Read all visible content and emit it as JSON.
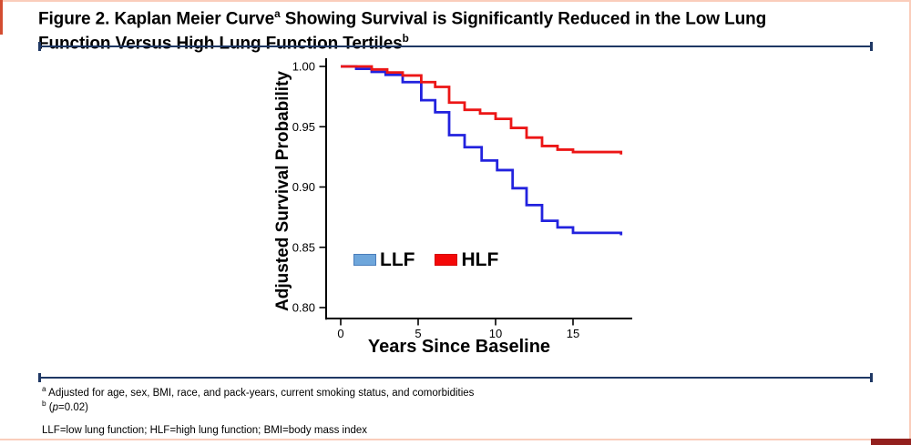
{
  "page": {
    "background": "#ffffff",
    "border_line_color": "#FACDBB",
    "rule_color": "#1F3864",
    "corner_accent_color": "#93201E",
    "corner_sliver_color": "#D34D31"
  },
  "title": {
    "line1_pre": "Figure 2. Kaplan Meier Curve",
    "line1_sup": "a",
    "line1_post": " Showing Survival is Significantly Reduced in the Low Lung",
    "line2": "Function Versus High Lung Function Tertiles",
    "line2_sup": "b"
  },
  "footnotes": {
    "a_sup": "a",
    "a_text": " Adjusted for age, sex, BMI, race, and pack-years, current smoking status, and comorbidities",
    "b_sup": "b",
    "b_open": " (",
    "b_italic": "p",
    "b_rest": "=0.02)",
    "abbrev": "LLF=low lung function; HLF=high lung function; BMI=body mass index"
  },
  "chart_data": {
    "type": "line",
    "subtype": "kaplan-meier-step",
    "title": "",
    "xlabel": "Years Since Baseline",
    "ylabel": "Adjusted Survival Probability",
    "xlim": [
      -1,
      18.8
    ],
    "ylim": [
      0.795,
      1.005
    ],
    "xticks": [
      0,
      5,
      10,
      15
    ],
    "yticks": [
      1.0,
      0.95,
      0.9,
      0.85,
      0.8
    ],
    "ytick_labels": [
      "1.00",
      "0.95",
      "0.90",
      "0.85",
      "0.80"
    ],
    "grid": false,
    "legend_position": "inside-lower-left",
    "axis_color": "#000000",
    "series": [
      {
        "name": "LLF",
        "color": "#2222DE",
        "legend_swatch_color": "#6EA6DB",
        "points": [
          [
            0,
            1.0
          ],
          [
            1,
            0.998
          ],
          [
            2,
            0.9955
          ],
          [
            2.9,
            0.993
          ],
          [
            4,
            0.987
          ],
          [
            5.2,
            0.972
          ],
          [
            6.1,
            0.962
          ],
          [
            7,
            0.943
          ],
          [
            8,
            0.933
          ],
          [
            9.1,
            0.922
          ],
          [
            10.1,
            0.914
          ],
          [
            11.1,
            0.899
          ],
          [
            12,
            0.885
          ],
          [
            13,
            0.872
          ],
          [
            14,
            0.8665
          ],
          [
            15,
            0.862
          ],
          [
            18.1,
            0.86
          ]
        ]
      },
      {
        "name": "HLF",
        "color": "#EC1616",
        "legend_swatch_color": "#F40808",
        "points": [
          [
            0,
            1.0
          ],
          [
            2,
            0.9975
          ],
          [
            3,
            0.995
          ],
          [
            4,
            0.9925
          ],
          [
            5.2,
            0.987
          ],
          [
            6.1,
            0.983
          ],
          [
            7,
            0.97
          ],
          [
            8,
            0.964
          ],
          [
            9,
            0.961
          ],
          [
            10,
            0.9565
          ],
          [
            11,
            0.949
          ],
          [
            12,
            0.941
          ],
          [
            13,
            0.934
          ],
          [
            14,
            0.931
          ],
          [
            15,
            0.929
          ],
          [
            18.1,
            0.927
          ]
        ]
      }
    ]
  }
}
